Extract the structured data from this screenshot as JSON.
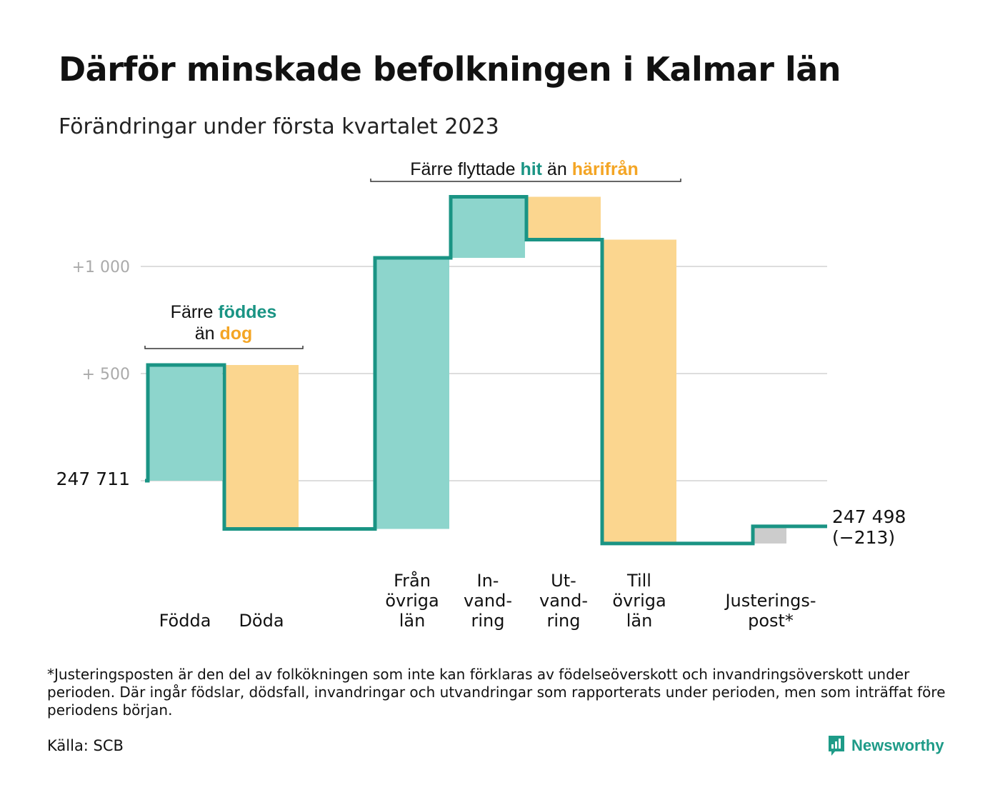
{
  "title": "Därför minskade befolkningen i Kalmar län",
  "subtitle": "Förändringar under första kvartalet 2023",
  "footnote": "*Justeringsposten är den del av folkökningen som inte kan förklaras av födelseöverskott och invandringsöverskott under perioden. Där ingår födslar, dödsfall, invandringar och utvandringar som rapporterats under perioden, men som inträffat före periodens början.",
  "source": "Källa: SCB",
  "brand": {
    "name": "Newsworthy"
  },
  "colors": {
    "increase": "#8dd5cc",
    "decrease": "#fbd68f",
    "adjustment": "#cccccc",
    "line": "#1a9484",
    "grid": "#dddddd",
    "tick_text": "#aaaaaa",
    "highlight_teal": "#1a9484",
    "highlight_orange": "#f4a524"
  },
  "chart_data": {
    "type": "waterfall",
    "start_value": 247711,
    "start_label": "247 711",
    "end_value": 247498,
    "end_label": "247 498",
    "end_change_label": "(−213)",
    "y_ticks": [
      {
        "offset": 1000,
        "label": "+1 000"
      },
      {
        "offset": 500,
        "label": "+ 500"
      }
    ],
    "steps": [
      {
        "category": "Födda",
        "lines": [
          "Födda"
        ],
        "value": 540,
        "kind": "increase"
      },
      {
        "category": "Döda",
        "lines": [
          "Döda"
        ],
        "value": -765,
        "kind": "decrease"
      },
      {
        "category": "Från övriga län",
        "lines": [
          "Från",
          "övriga",
          "län"
        ],
        "value": 1265,
        "kind": "increase"
      },
      {
        "category": "Invandring",
        "lines": [
          "In-",
          "vand-",
          "ring"
        ],
        "value": 285,
        "kind": "increase"
      },
      {
        "category": "Utvandring",
        "lines": [
          "Ut-",
          "vand-",
          "ring"
        ],
        "value": -200,
        "kind": "decrease"
      },
      {
        "category": "Till övriga län",
        "lines": [
          "Till",
          "övriga",
          "län"
        ],
        "value": -1418,
        "kind": "decrease"
      },
      {
        "category": "Justeringspost*",
        "lines": [
          "Justerings-",
          "post*"
        ],
        "value": 80,
        "kind": "adjustment"
      }
    ],
    "annotations": [
      {
        "lines": [
          [
            {
              "text": "Färre ",
              "style": "plain"
            },
            {
              "text": "föddes",
              "style": "teal"
            }
          ],
          [
            {
              "text": "än ",
              "style": "plain"
            },
            {
              "text": "dog",
              "style": "orange"
            }
          ]
        ]
      },
      {
        "lines": [
          [
            {
              "text": "Färre flyttade ",
              "style": "plain"
            },
            {
              "text": "hit",
              "style": "teal"
            },
            {
              "text": " än ",
              "style": "plain"
            },
            {
              "text": "härifrån",
              "style": "orange"
            }
          ]
        ]
      }
    ]
  }
}
